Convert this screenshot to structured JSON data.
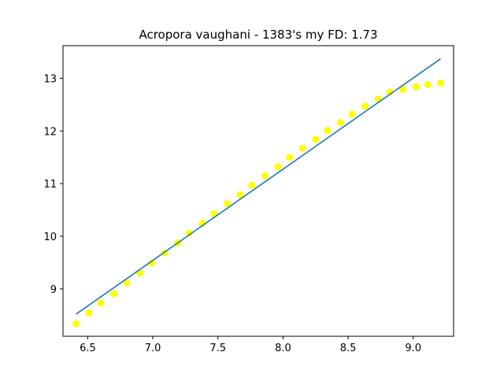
{
  "chart_data": {
    "type": "scatter",
    "title": "Acropora vaughani - 1383's my FD: 1.73",
    "xlabel": "",
    "ylabel": "",
    "xlim": [
      6.31,
      9.31
    ],
    "ylim": [
      8.1,
      13.62
    ],
    "grid": false,
    "x_ticks": [
      "6.5",
      "7.0",
      "7.5",
      "8.0",
      "8.5",
      "9.0"
    ],
    "y_ticks": [
      "9",
      "10",
      "11",
      "12",
      "13"
    ],
    "point_color": "#ffff00",
    "line_color": "#1f77b4",
    "points": {
      "x": [
        6.41,
        6.51,
        6.6,
        6.7,
        6.8,
        6.9,
        6.99,
        7.09,
        7.19,
        7.28,
        7.38,
        7.47,
        7.57,
        7.67,
        7.76,
        7.86,
        7.96,
        8.05,
        8.15,
        8.25,
        8.34,
        8.44,
        8.53,
        8.63,
        8.73,
        8.82,
        8.92,
        9.02,
        9.11,
        9.21
      ],
      "y": [
        8.34,
        8.54,
        8.73,
        8.91,
        9.11,
        9.3,
        9.49,
        9.68,
        9.87,
        10.06,
        10.25,
        10.43,
        10.62,
        10.79,
        10.97,
        11.15,
        11.32,
        11.5,
        11.67,
        11.84,
        12.01,
        12.16,
        12.32,
        12.47,
        12.61,
        12.74,
        12.79,
        12.84,
        12.88,
        12.91
      ]
    },
    "fit_line": {
      "x": [
        6.41,
        9.21
      ],
      "y": [
        8.52,
        13.37
      ]
    }
  }
}
